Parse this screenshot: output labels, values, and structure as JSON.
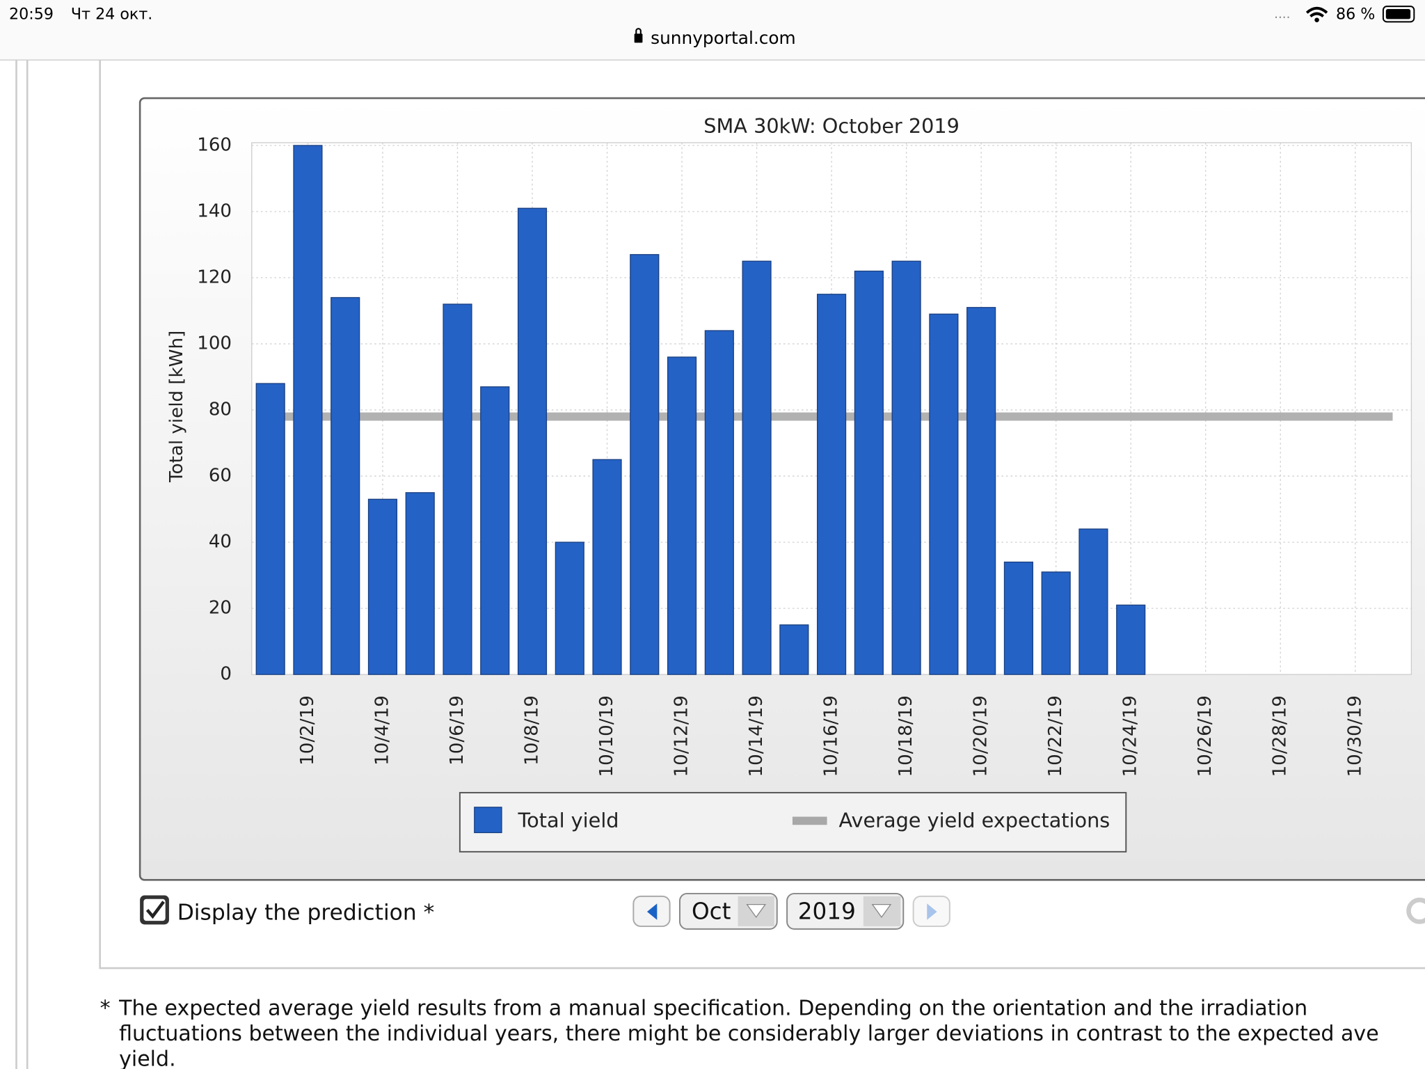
{
  "status_bar": {
    "time": "20:59",
    "date": "Чт 24 окт.",
    "url": "sunnyportal.com",
    "battery": "86 %"
  },
  "chart_data": {
    "type": "bar",
    "title": "SMA 30kW: October 2019",
    "y_label": "Total yield [kWh]",
    "categories": [
      null,
      "10/2/19",
      null,
      "10/4/19",
      null,
      "10/6/19",
      null,
      "10/8/19",
      null,
      "10/10/19",
      null,
      "10/12/19",
      null,
      "10/14/19",
      null,
      "10/16/19",
      null,
      "10/18/19",
      null,
      "10/20/19",
      null,
      "10/22/19",
      null,
      "10/24/19",
      null,
      "10/26/19",
      null,
      "10/28/19",
      null,
      "10/30/19",
      null
    ],
    "series": [
      {
        "name": "Total yield",
        "type": "bar",
        "color": "#2462c6",
        "values": [
          88,
          160,
          114,
          53,
          55,
          112,
          87,
          141,
          40,
          65,
          127,
          96,
          104,
          125,
          15,
          115,
          122,
          125,
          109,
          111,
          34,
          31,
          44,
          21,
          null,
          null,
          null,
          null,
          null,
          null,
          null
        ]
      },
      {
        "name": "Average yield expectations",
        "type": "line",
        "color": "#a8a8a8",
        "values": [
          78,
          78,
          78,
          78,
          78,
          78,
          78,
          78,
          78,
          78,
          78,
          78,
          78,
          78,
          78,
          78,
          78,
          78,
          78,
          78,
          78,
          78,
          78,
          78,
          78,
          78,
          78,
          78,
          78,
          78,
          78
        ]
      }
    ],
    "ylim": [
      0,
      160
    ],
    "yticks": [
      0,
      20,
      40,
      60,
      80,
      100,
      120,
      140,
      160
    ],
    "grid": true,
    "legend": "bottom"
  },
  "controls": {
    "checkbox_label": "Display the prediction *",
    "month": "Oct",
    "year": "2019"
  },
  "footnote": {
    "mark": "*",
    "lines": [
      "The expected average yield results from a manual specification. Depending on the orientation and the irradiation",
      "fluctuations between the individual years, there might be considerably larger deviations in contrast to the expected ave",
      "yield."
    ]
  }
}
